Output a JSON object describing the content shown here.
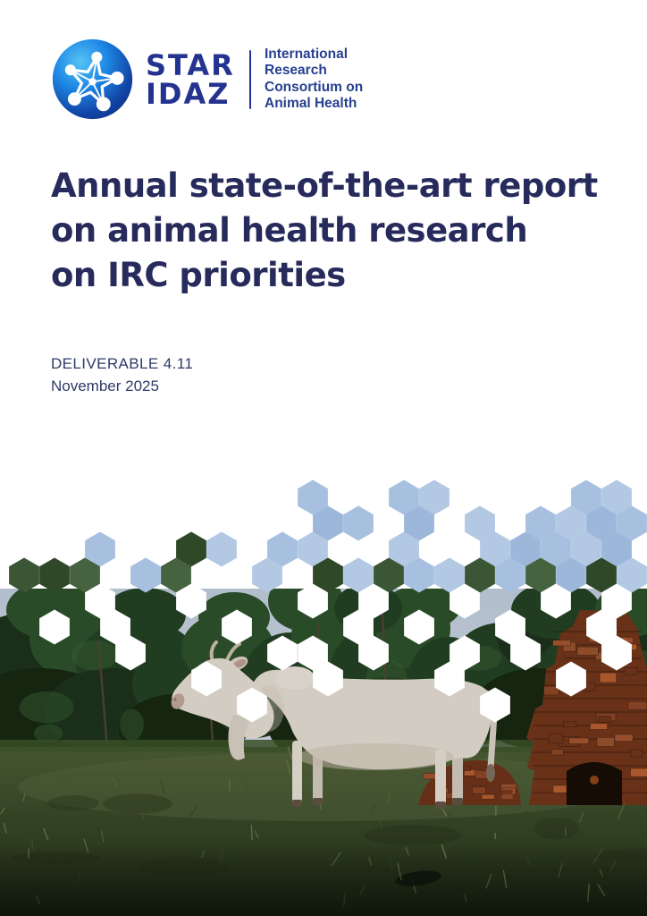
{
  "logo": {
    "brand": [
      "STAR",
      "IDAZ"
    ],
    "tagline": [
      "International",
      "Research",
      "Consortium on",
      "Animal Health"
    ]
  },
  "title": {
    "lines": [
      "Annual state-of-the-art report",
      "on animal health research",
      "on IRC priorities"
    ]
  },
  "meta": {
    "deliverable": "DELIVERABLE 4.11",
    "date": "November 2025"
  },
  "photo": {
    "description": "White cow standing on grass in front of dark trees and a red brick kiln, with a hexagonal dissolve pattern along the top edge"
  },
  "colors": {
    "brand_blue": "#24338f",
    "title_navy": "#262b5c",
    "tagline_blue": "#27418f",
    "hex_sky_blue": "#a8c0e0",
    "hex_tree_green": "#3a5634",
    "logo_sphere_blue": "#1d6fd6"
  }
}
